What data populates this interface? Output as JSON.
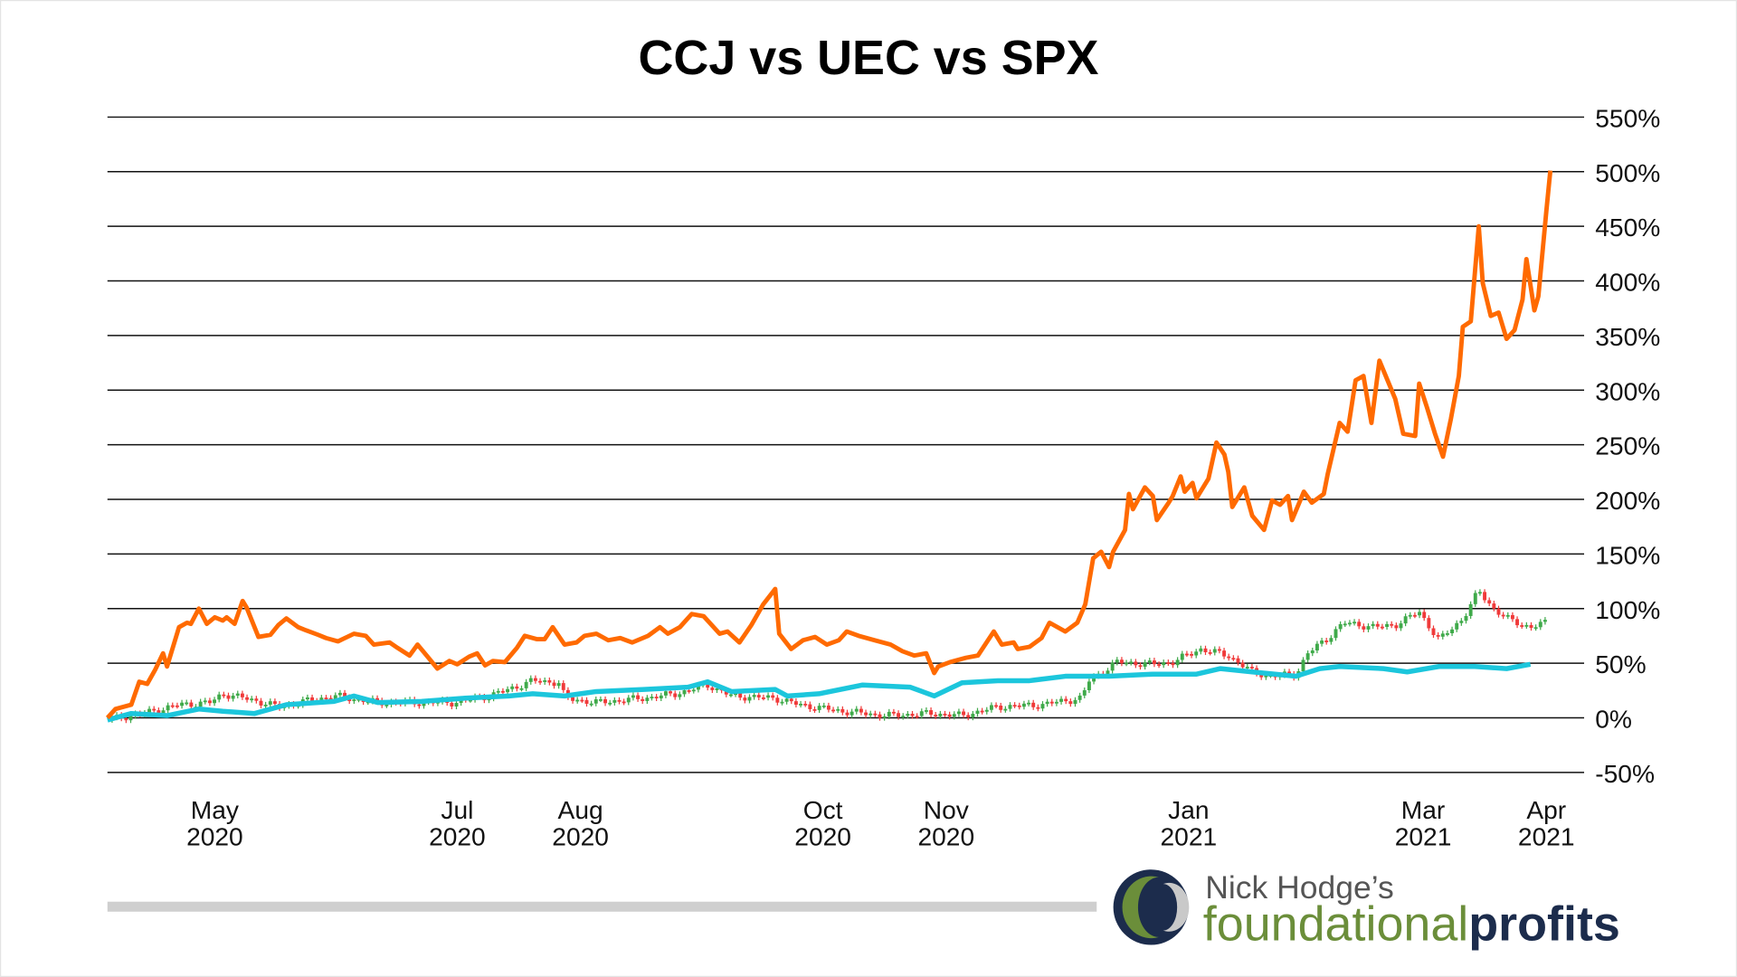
{
  "chart_data": {
    "type": "line",
    "title_parts": [
      {
        "text": "CCJ",
        "color": "#111111"
      },
      {
        "text": " vs ",
        "color": "#111111"
      },
      {
        "text": "UEC",
        "color": "#ff6a00"
      },
      {
        "text": " vs ",
        "color": "#111111"
      },
      {
        "text": "SPX",
        "color": "#1cc6dc"
      }
    ],
    "ylim": [
      -50,
      550
    ],
    "y_ticks": [
      "550%",
      "500%",
      "450%",
      "400%",
      "350%",
      "300%",
      "250%",
      "200%",
      "150%",
      "100%",
      "50%",
      "0%",
      "-50%"
    ],
    "y_tick_values": [
      550,
      500,
      450,
      400,
      350,
      300,
      250,
      200,
      150,
      100,
      50,
      0,
      -50
    ],
    "y_axis_side": "right",
    "grid": true,
    "x_range": [
      "2020-04-04",
      "2021-04-02"
    ],
    "x_ticks": [
      {
        "month": "May",
        "year": "2020",
        "date": "2020-05-01"
      },
      {
        "month": "Jul",
        "year": "2020",
        "date": "2020-07-01"
      },
      {
        "month": "Aug",
        "year": "2020",
        "date": "2020-08-01"
      },
      {
        "month": "Oct",
        "year": "2020",
        "date": "2020-10-01"
      },
      {
        "month": "Nov",
        "year": "2020",
        "date": "2020-11-01"
      },
      {
        "month": "Jan",
        "year": "2021",
        "date": "2021-01-01"
      },
      {
        "month": "Mar",
        "year": "2021",
        "date": "2021-03-01"
      },
      {
        "month": "Apr",
        "year": "2021",
        "date": "2021-04-01"
      }
    ],
    "series": [
      {
        "name": "UEC",
        "style": "line",
        "color": "#ff6a00",
        "points": [
          [
            "2020-04-04",
            0
          ],
          [
            "2020-04-06",
            8
          ],
          [
            "2020-04-10",
            12
          ],
          [
            "2020-04-12",
            33
          ],
          [
            "2020-04-14",
            31
          ],
          [
            "2020-04-16",
            44
          ],
          [
            "2020-04-18",
            59
          ],
          [
            "2020-04-19",
            47
          ],
          [
            "2020-04-22",
            83
          ],
          [
            "2020-04-24",
            87
          ],
          [
            "2020-04-25",
            86
          ],
          [
            "2020-04-27",
            100
          ],
          [
            "2020-04-29",
            86
          ],
          [
            "2020-05-01",
            92
          ],
          [
            "2020-05-03",
            89
          ],
          [
            "2020-05-04",
            92
          ],
          [
            "2020-05-06",
            86
          ],
          [
            "2020-05-08",
            107
          ],
          [
            "2020-05-09",
            101
          ],
          [
            "2020-05-12",
            74
          ],
          [
            "2020-05-15",
            76
          ],
          [
            "2020-05-17",
            85
          ],
          [
            "2020-05-19",
            91
          ],
          [
            "2020-05-22",
            83
          ],
          [
            "2020-05-24",
            80
          ],
          [
            "2020-05-27",
            76
          ],
          [
            "2020-05-29",
            73
          ],
          [
            "2020-06-01",
            70
          ],
          [
            "2020-06-05",
            77
          ],
          [
            "2020-06-08",
            75
          ],
          [
            "2020-06-10",
            67
          ],
          [
            "2020-06-14",
            69
          ],
          [
            "2020-06-16",
            64
          ],
          [
            "2020-06-19",
            57
          ],
          [
            "2020-06-21",
            67
          ],
          [
            "2020-06-24",
            54
          ],
          [
            "2020-06-26",
            45
          ],
          [
            "2020-06-29",
            52
          ],
          [
            "2020-07-01",
            49
          ],
          [
            "2020-07-04",
            56
          ],
          [
            "2020-07-06",
            59
          ],
          [
            "2020-07-08",
            48
          ],
          [
            "2020-07-10",
            52
          ],
          [
            "2020-07-13",
            51
          ],
          [
            "2020-07-16",
            64
          ],
          [
            "2020-07-18",
            75
          ],
          [
            "2020-07-21",
            72
          ],
          [
            "2020-07-23",
            72
          ],
          [
            "2020-07-25",
            83
          ],
          [
            "2020-07-28",
            67
          ],
          [
            "2020-07-31",
            69
          ],
          [
            "2020-08-02",
            75
          ],
          [
            "2020-08-05",
            77
          ],
          [
            "2020-08-08",
            71
          ],
          [
            "2020-08-11",
            73
          ],
          [
            "2020-08-14",
            69
          ],
          [
            "2020-08-18",
            75
          ],
          [
            "2020-08-21",
            83
          ],
          [
            "2020-08-23",
            77
          ],
          [
            "2020-08-26",
            83
          ],
          [
            "2020-08-29",
            95
          ],
          [
            "2020-09-01",
            93
          ],
          [
            "2020-09-05",
            77
          ],
          [
            "2020-09-07",
            79
          ],
          [
            "2020-09-10",
            69
          ],
          [
            "2020-09-13",
            85
          ],
          [
            "2020-09-16",
            104
          ],
          [
            "2020-09-19",
            118
          ],
          [
            "2020-09-20",
            77
          ],
          [
            "2020-09-23",
            63
          ],
          [
            "2020-09-26",
            71
          ],
          [
            "2020-09-29",
            74
          ],
          [
            "2020-10-02",
            67
          ],
          [
            "2020-10-05",
            71
          ],
          [
            "2020-10-07",
            79
          ],
          [
            "2020-10-10",
            75
          ],
          [
            "2020-10-14",
            71
          ],
          [
            "2020-10-18",
            67
          ],
          [
            "2020-10-21",
            61
          ],
          [
            "2020-10-24",
            57
          ],
          [
            "2020-10-27",
            59
          ],
          [
            "2020-10-29",
            41
          ],
          [
            "2020-10-30",
            47
          ],
          [
            "2020-11-02",
            51
          ],
          [
            "2020-11-06",
            55
          ],
          [
            "2020-11-09",
            57
          ],
          [
            "2020-11-13",
            79
          ],
          [
            "2020-11-15",
            67
          ],
          [
            "2020-11-18",
            69
          ],
          [
            "2020-11-19",
            63
          ],
          [
            "2020-11-22",
            65
          ],
          [
            "2020-11-25",
            73
          ],
          [
            "2020-11-27",
            87
          ],
          [
            "2020-12-01",
            79
          ],
          [
            "2020-12-04",
            87
          ],
          [
            "2020-12-06",
            104
          ],
          [
            "2020-12-08",
            146
          ],
          [
            "2020-12-10",
            152
          ],
          [
            "2020-12-12",
            138
          ],
          [
            "2020-12-13",
            152
          ],
          [
            "2020-12-16",
            172
          ],
          [
            "2020-12-17",
            205
          ],
          [
            "2020-12-18",
            191
          ],
          [
            "2020-12-21",
            211
          ],
          [
            "2020-12-23",
            203
          ],
          [
            "2020-12-24",
            181
          ],
          [
            "2020-12-27",
            197
          ],
          [
            "2020-12-28",
            203
          ],
          [
            "2020-12-30",
            221
          ],
          [
            "2020-12-31",
            207
          ],
          [
            "2021-01-02",
            215
          ],
          [
            "2021-01-03",
            201
          ],
          [
            "2021-01-06",
            219
          ],
          [
            "2021-01-08",
            252
          ],
          [
            "2021-01-10",
            241
          ],
          [
            "2021-01-11",
            225
          ],
          [
            "2021-01-12",
            193
          ],
          [
            "2021-01-15",
            211
          ],
          [
            "2021-01-17",
            185
          ],
          [
            "2021-01-20",
            172
          ],
          [
            "2021-01-22",
            199
          ],
          [
            "2021-01-24",
            195
          ],
          [
            "2021-01-26",
            203
          ],
          [
            "2021-01-27",
            181
          ],
          [
            "2021-01-30",
            207
          ],
          [
            "2021-02-01",
            197
          ],
          [
            "2021-02-04",
            205
          ],
          [
            "2021-02-05",
            223
          ],
          [
            "2021-02-08",
            270
          ],
          [
            "2021-02-10",
            262
          ],
          [
            "2021-02-12",
            309
          ],
          [
            "2021-02-14",
            313
          ],
          [
            "2021-02-16",
            270
          ],
          [
            "2021-02-18",
            327
          ],
          [
            "2021-02-22",
            292
          ],
          [
            "2021-02-24",
            260
          ],
          [
            "2021-02-27",
            258
          ],
          [
            "2021-02-28",
            306
          ],
          [
            "2021-03-02",
            284
          ],
          [
            "2021-03-04",
            260
          ],
          [
            "2021-03-06",
            239
          ],
          [
            "2021-03-08",
            274
          ],
          [
            "2021-03-10",
            313
          ],
          [
            "2021-03-11",
            358
          ],
          [
            "2021-03-13",
            363
          ],
          [
            "2021-03-15",
            450
          ],
          [
            "2021-03-16",
            398
          ],
          [
            "2021-03-18",
            368
          ],
          [
            "2021-03-20",
            371
          ],
          [
            "2021-03-22",
            347
          ],
          [
            "2021-03-24",
            355
          ],
          [
            "2021-03-26",
            383
          ],
          [
            "2021-03-27",
            420
          ],
          [
            "2021-03-29",
            373
          ],
          [
            "2021-03-30",
            386
          ],
          [
            "2021-04-01",
            464
          ],
          [
            "2021-04-02",
            501
          ]
        ]
      },
      {
        "name": "SPX",
        "style": "line",
        "color": "#1cc6dc",
        "points": [
          [
            "2020-04-04",
            -2
          ],
          [
            "2020-04-10",
            4
          ],
          [
            "2020-04-19",
            2
          ],
          [
            "2020-04-27",
            8
          ],
          [
            "2020-05-03",
            6
          ],
          [
            "2020-05-11",
            4
          ],
          [
            "2020-05-19",
            12
          ],
          [
            "2020-05-31",
            15
          ],
          [
            "2020-06-05",
            20
          ],
          [
            "2020-06-11",
            14
          ],
          [
            "2020-06-22",
            15
          ],
          [
            "2020-07-03",
            18
          ],
          [
            "2020-07-14",
            20
          ],
          [
            "2020-07-20",
            22
          ],
          [
            "2020-07-28",
            20
          ],
          [
            "2020-08-05",
            24
          ],
          [
            "2020-08-17",
            26
          ],
          [
            "2020-08-28",
            28
          ],
          [
            "2020-09-02",
            33
          ],
          [
            "2020-09-08",
            24
          ],
          [
            "2020-09-19",
            26
          ],
          [
            "2020-09-22",
            20
          ],
          [
            "2020-09-30",
            22
          ],
          [
            "2020-10-11",
            30
          ],
          [
            "2020-10-23",
            28
          ],
          [
            "2020-10-29",
            20
          ],
          [
            "2020-11-05",
            32
          ],
          [
            "2020-11-14",
            34
          ],
          [
            "2020-11-22",
            34
          ],
          [
            "2020-12-01",
            38
          ],
          [
            "2020-12-12",
            38
          ],
          [
            "2020-12-23",
            40
          ],
          [
            "2021-01-03",
            40
          ],
          [
            "2021-01-09",
            45
          ],
          [
            "2021-01-17",
            42
          ],
          [
            "2021-01-28",
            38
          ],
          [
            "2021-02-03",
            45
          ],
          [
            "2021-02-08",
            47
          ],
          [
            "2021-02-19",
            45
          ],
          [
            "2021-02-25",
            42
          ],
          [
            "2021-03-05",
            47
          ],
          [
            "2021-03-14",
            47
          ],
          [
            "2021-03-22",
            45
          ],
          [
            "2021-03-28",
            49
          ]
        ]
      },
      {
        "name": "CCJ",
        "style": "candlestick",
        "up_color": "#3faa4a",
        "down_color": "#f03a3a",
        "points": [
          [
            "2020-04-04",
            -2
          ],
          [
            "2020-04-13",
            4
          ],
          [
            "2020-04-22",
            12
          ],
          [
            "2020-04-30",
            14
          ],
          [
            "2020-05-03",
            22
          ],
          [
            "2020-05-11",
            16
          ],
          [
            "2020-05-17",
            10
          ],
          [
            "2020-05-25",
            16
          ],
          [
            "2020-05-31",
            20
          ],
          [
            "2020-06-11",
            14
          ],
          [
            "2020-06-22",
            14
          ],
          [
            "2020-06-30",
            14
          ],
          [
            "2020-07-09",
            20
          ],
          [
            "2020-07-14",
            26
          ],
          [
            "2020-07-20",
            34
          ],
          [
            "2020-07-27",
            32
          ],
          [
            "2020-07-28",
            18
          ],
          [
            "2020-08-05",
            14
          ],
          [
            "2020-08-17",
            18
          ],
          [
            "2020-08-25",
            22
          ],
          [
            "2020-09-02",
            30
          ],
          [
            "2020-09-08",
            20
          ],
          [
            "2020-09-19",
            18
          ],
          [
            "2020-09-25",
            12
          ],
          [
            "2020-10-06",
            6
          ],
          [
            "2020-10-17",
            2
          ],
          [
            "2020-10-28",
            4
          ],
          [
            "2020-11-05",
            2
          ],
          [
            "2020-11-14",
            10
          ],
          [
            "2020-11-25",
            12
          ],
          [
            "2020-12-05",
            18
          ],
          [
            "2020-12-07",
            34
          ],
          [
            "2020-12-14",
            51
          ],
          [
            "2020-12-23",
            49
          ],
          [
            "2020-12-28",
            51
          ],
          [
            "2021-01-04",
            63
          ],
          [
            "2021-01-11",
            57
          ],
          [
            "2021-01-17",
            42
          ],
          [
            "2021-01-22",
            38
          ],
          [
            "2021-01-28",
            40
          ],
          [
            "2021-01-31",
            59
          ],
          [
            "2021-02-05",
            73
          ],
          [
            "2021-02-09",
            87
          ],
          [
            "2021-02-17",
            83
          ],
          [
            "2021-02-22",
            85
          ],
          [
            "2021-02-28",
            97
          ],
          [
            "2021-03-05",
            71
          ],
          [
            "2021-03-11",
            91
          ],
          [
            "2021-03-15",
            116
          ],
          [
            "2021-03-19",
            99
          ],
          [
            "2021-03-23",
            89
          ],
          [
            "2021-03-28",
            83
          ],
          [
            "2021-04-01",
            87
          ]
        ]
      }
    ]
  },
  "branding": {
    "byline": "Nick Hodge’s",
    "word1": "foundational",
    "word2": "profits",
    "navy": "#1c2c4c",
    "green": "#6b8e3a"
  },
  "scrollbar": {
    "color": "#cfcfcf"
  }
}
